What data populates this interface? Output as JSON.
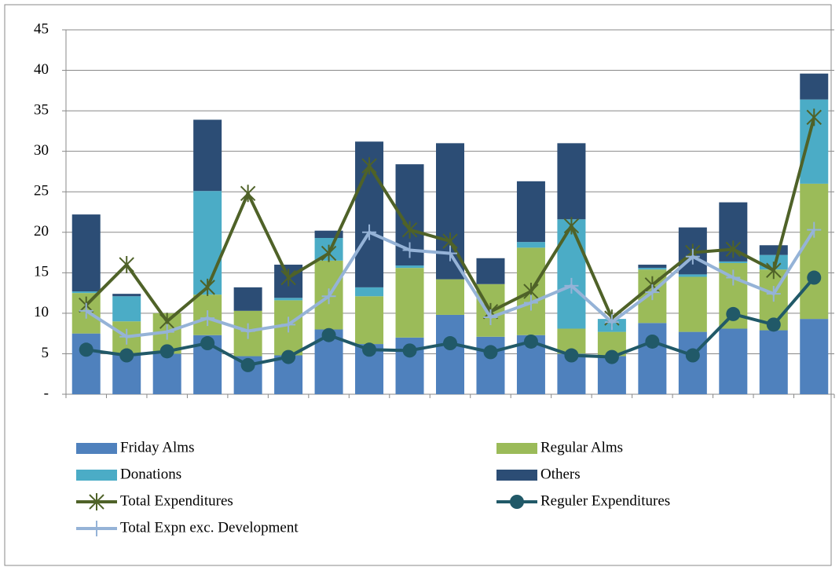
{
  "chart_data": {
    "type": "bar",
    "stacked": true,
    "categories": [
      null,
      null,
      null,
      null,
      null,
      null,
      null,
      null,
      null,
      null,
      null,
      null,
      null,
      null,
      null,
      null,
      null,
      null,
      null
    ],
    "ylim": [
      0,
      45
    ],
    "yticks": [
      {
        "value": 0,
        "label": "-"
      },
      5,
      10,
      15,
      20,
      25,
      30,
      35,
      40,
      45
    ],
    "grid": true,
    "legend": "bottom",
    "series": [
      {
        "name": "Friday Alms",
        "type": "bar",
        "color": "#4f81bd",
        "values": [
          7.5,
          5.0,
          5.0,
          7.3,
          4.7,
          4.8,
          8.0,
          6.2,
          7.0,
          9.8,
          7.1,
          7.3,
          5.0,
          4.7,
          8.8,
          7.7,
          8.1,
          7.9,
          9.3
        ]
      },
      {
        "name": "Regular Alms",
        "type": "bar",
        "color": "#9bbb59",
        "values": [
          5.0,
          4.0,
          5.0,
          5.0,
          5.6,
          6.8,
          8.5,
          5.9,
          8.6,
          4.4,
          6.5,
          10.8,
          3.1,
          3.0,
          6.6,
          6.8,
          8.1,
          7.5,
          16.7
        ]
      },
      {
        "name": "Donations",
        "type": "bar",
        "color": "#4bacc6",
        "values": [
          0.2,
          3.1,
          0,
          12.8,
          0,
          0.3,
          2.8,
          1.1,
          0.3,
          0,
          0,
          0.7,
          13.5,
          1.6,
          0.2,
          0.3,
          0.2,
          1.8,
          10.4
        ]
      },
      {
        "name": "Others",
        "type": "bar",
        "color": "#2c4d75",
        "values": [
          9.5,
          0.3,
          0,
          8.8,
          2.9,
          4.1,
          0.9,
          18.0,
          12.5,
          16.8,
          3.2,
          7.5,
          9.4,
          0,
          0.4,
          5.8,
          7.3,
          1.2,
          3.2
        ]
      },
      {
        "name": "Total Expenditures",
        "type": "line",
        "marker": "asterisk",
        "color": "#4f6228",
        "values": [
          11.0,
          16.0,
          9.0,
          13.2,
          24.8,
          14.4,
          17.4,
          28.2,
          20.3,
          18.9,
          10.2,
          12.7,
          20.8,
          9.4,
          13.5,
          17.5,
          17.9,
          15.3,
          34.2
        ]
      },
      {
        "name": "Reguler Expenditures",
        "type": "line",
        "marker": "circle",
        "color": "#215968",
        "values": [
          5.5,
          4.8,
          5.3,
          6.3,
          3.6,
          4.6,
          7.3,
          5.5,
          5.4,
          6.3,
          5.2,
          6.5,
          4.8,
          4.6,
          6.5,
          4.8,
          9.9,
          8.6,
          14.4
        ]
      },
      {
        "name": "Total Expn exc. Development",
        "type": "line",
        "marker": "plus",
        "color": "#95b3d7",
        "values": [
          10.3,
          7.1,
          7.7,
          9.4,
          7.8,
          8.6,
          12.1,
          20.0,
          17.8,
          17.4,
          9.5,
          11.3,
          13.4,
          8.9,
          12.6,
          17.0,
          14.4,
          12.4,
          20.3
        ]
      }
    ]
  }
}
